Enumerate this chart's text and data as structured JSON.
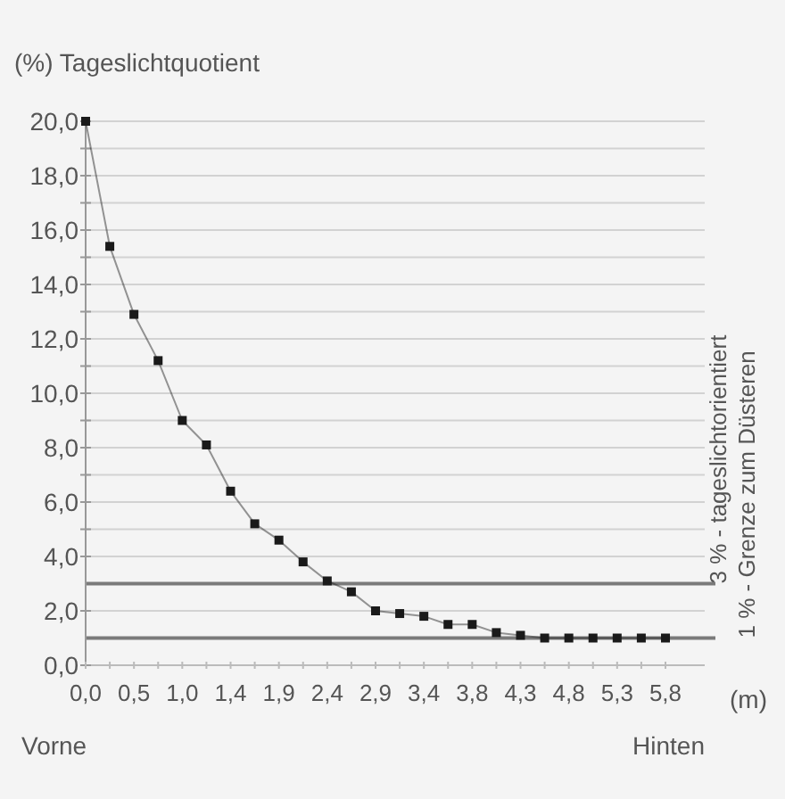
{
  "chart_data": {
    "type": "line",
    "ylabel": "(%) Tageslichtquotient",
    "xlabel": "(m)",
    "x": [
      0,
      0.24,
      0.48,
      0.72,
      0.96,
      1.2,
      1.44,
      1.68,
      1.92,
      2.16,
      2.4,
      2.64,
      2.88,
      3.12,
      3.36,
      3.6,
      3.84,
      4.08,
      4.32,
      4.56,
      4.8,
      5.04,
      5.28,
      5.52,
      5.76
    ],
    "series": [
      {
        "color": "#1a1a1a",
        "values": [
          20.0,
          15.4,
          12.9,
          11.2,
          9.0,
          8.1,
          6.4,
          5.2,
          4.6,
          3.8,
          3.1,
          2.7,
          2.0,
          1.9,
          1.8,
          1.5,
          1.5,
          1.2,
          1.1,
          1.0,
          1.0,
          1.0,
          1.0,
          1.0,
          1.0
        ]
      }
    ],
    "xlim": [
      0,
      6.15
    ],
    "xticks": [
      {
        "value": 0,
        "label": "0,0"
      },
      {
        "value": 0.24,
        "label": null
      },
      {
        "value": 0.48,
        "label": "0,5"
      },
      {
        "value": 0.72,
        "label": null
      },
      {
        "value": 0.96,
        "label": "1,0"
      },
      {
        "value": 1.2,
        "label": null
      },
      {
        "value": 1.44,
        "label": "1,4"
      },
      {
        "value": 1.68,
        "label": null
      },
      {
        "value": 1.92,
        "label": "1,9"
      },
      {
        "value": 2.16,
        "label": null
      },
      {
        "value": 2.4,
        "label": "2,4"
      },
      {
        "value": 2.64,
        "label": null
      },
      {
        "value": 2.88,
        "label": "2,9"
      },
      {
        "value": 3.12,
        "label": null
      },
      {
        "value": 3.36,
        "label": "3,4"
      },
      {
        "value": 3.6,
        "label": null
      },
      {
        "value": 3.84,
        "label": "3,8"
      },
      {
        "value": 4.08,
        "label": null
      },
      {
        "value": 4.32,
        "label": "4,3"
      },
      {
        "value": 4.56,
        "label": null
      },
      {
        "value": 4.8,
        "label": "4,8"
      },
      {
        "value": 5.04,
        "label": null
      },
      {
        "value": 5.28,
        "label": "5,3"
      },
      {
        "value": 5.52,
        "label": null
      },
      {
        "value": 5.76,
        "label": "5,8"
      }
    ],
    "ylim": [
      0,
      20
    ],
    "yticks": [
      {
        "value": 0,
        "label": "0,0"
      },
      {
        "value": 2,
        "label": "2,0"
      },
      {
        "value": 4,
        "label": "4,0"
      },
      {
        "value": 5,
        "label": null
      },
      {
        "value": 6,
        "label": "6,0"
      },
      {
        "value": 7,
        "label": null
      },
      {
        "value": 8,
        "label": "8,0"
      },
      {
        "value": 9,
        "label": null
      },
      {
        "value": 10,
        "label": "10,0"
      },
      {
        "value": 11,
        "label": null
      },
      {
        "value": 12,
        "label": "12,0"
      },
      {
        "value": 13,
        "label": null
      },
      {
        "value": 14,
        "label": "14,0"
      },
      {
        "value": 15,
        "label": null
      },
      {
        "value": 16,
        "label": "16,0"
      },
      {
        "value": 17,
        "label": null
      },
      {
        "value": 18,
        "label": "18,0"
      },
      {
        "value": 19,
        "label": null
      },
      {
        "value": 20,
        "label": "20,0"
      }
    ],
    "grid": "y",
    "marker": "square",
    "line_style": "solid",
    "ref_lines": [
      {
        "axis": "y",
        "value": 3,
        "label": "3 % - tageslichtorientiert",
        "color": "#7a7a7a"
      },
      {
        "axis": "y",
        "value": 1,
        "label": "1 % - Grenze zum Düsteren",
        "color": "#7a7a7a"
      }
    ],
    "annotations": [
      "Vorne",
      "Hinten"
    ]
  }
}
